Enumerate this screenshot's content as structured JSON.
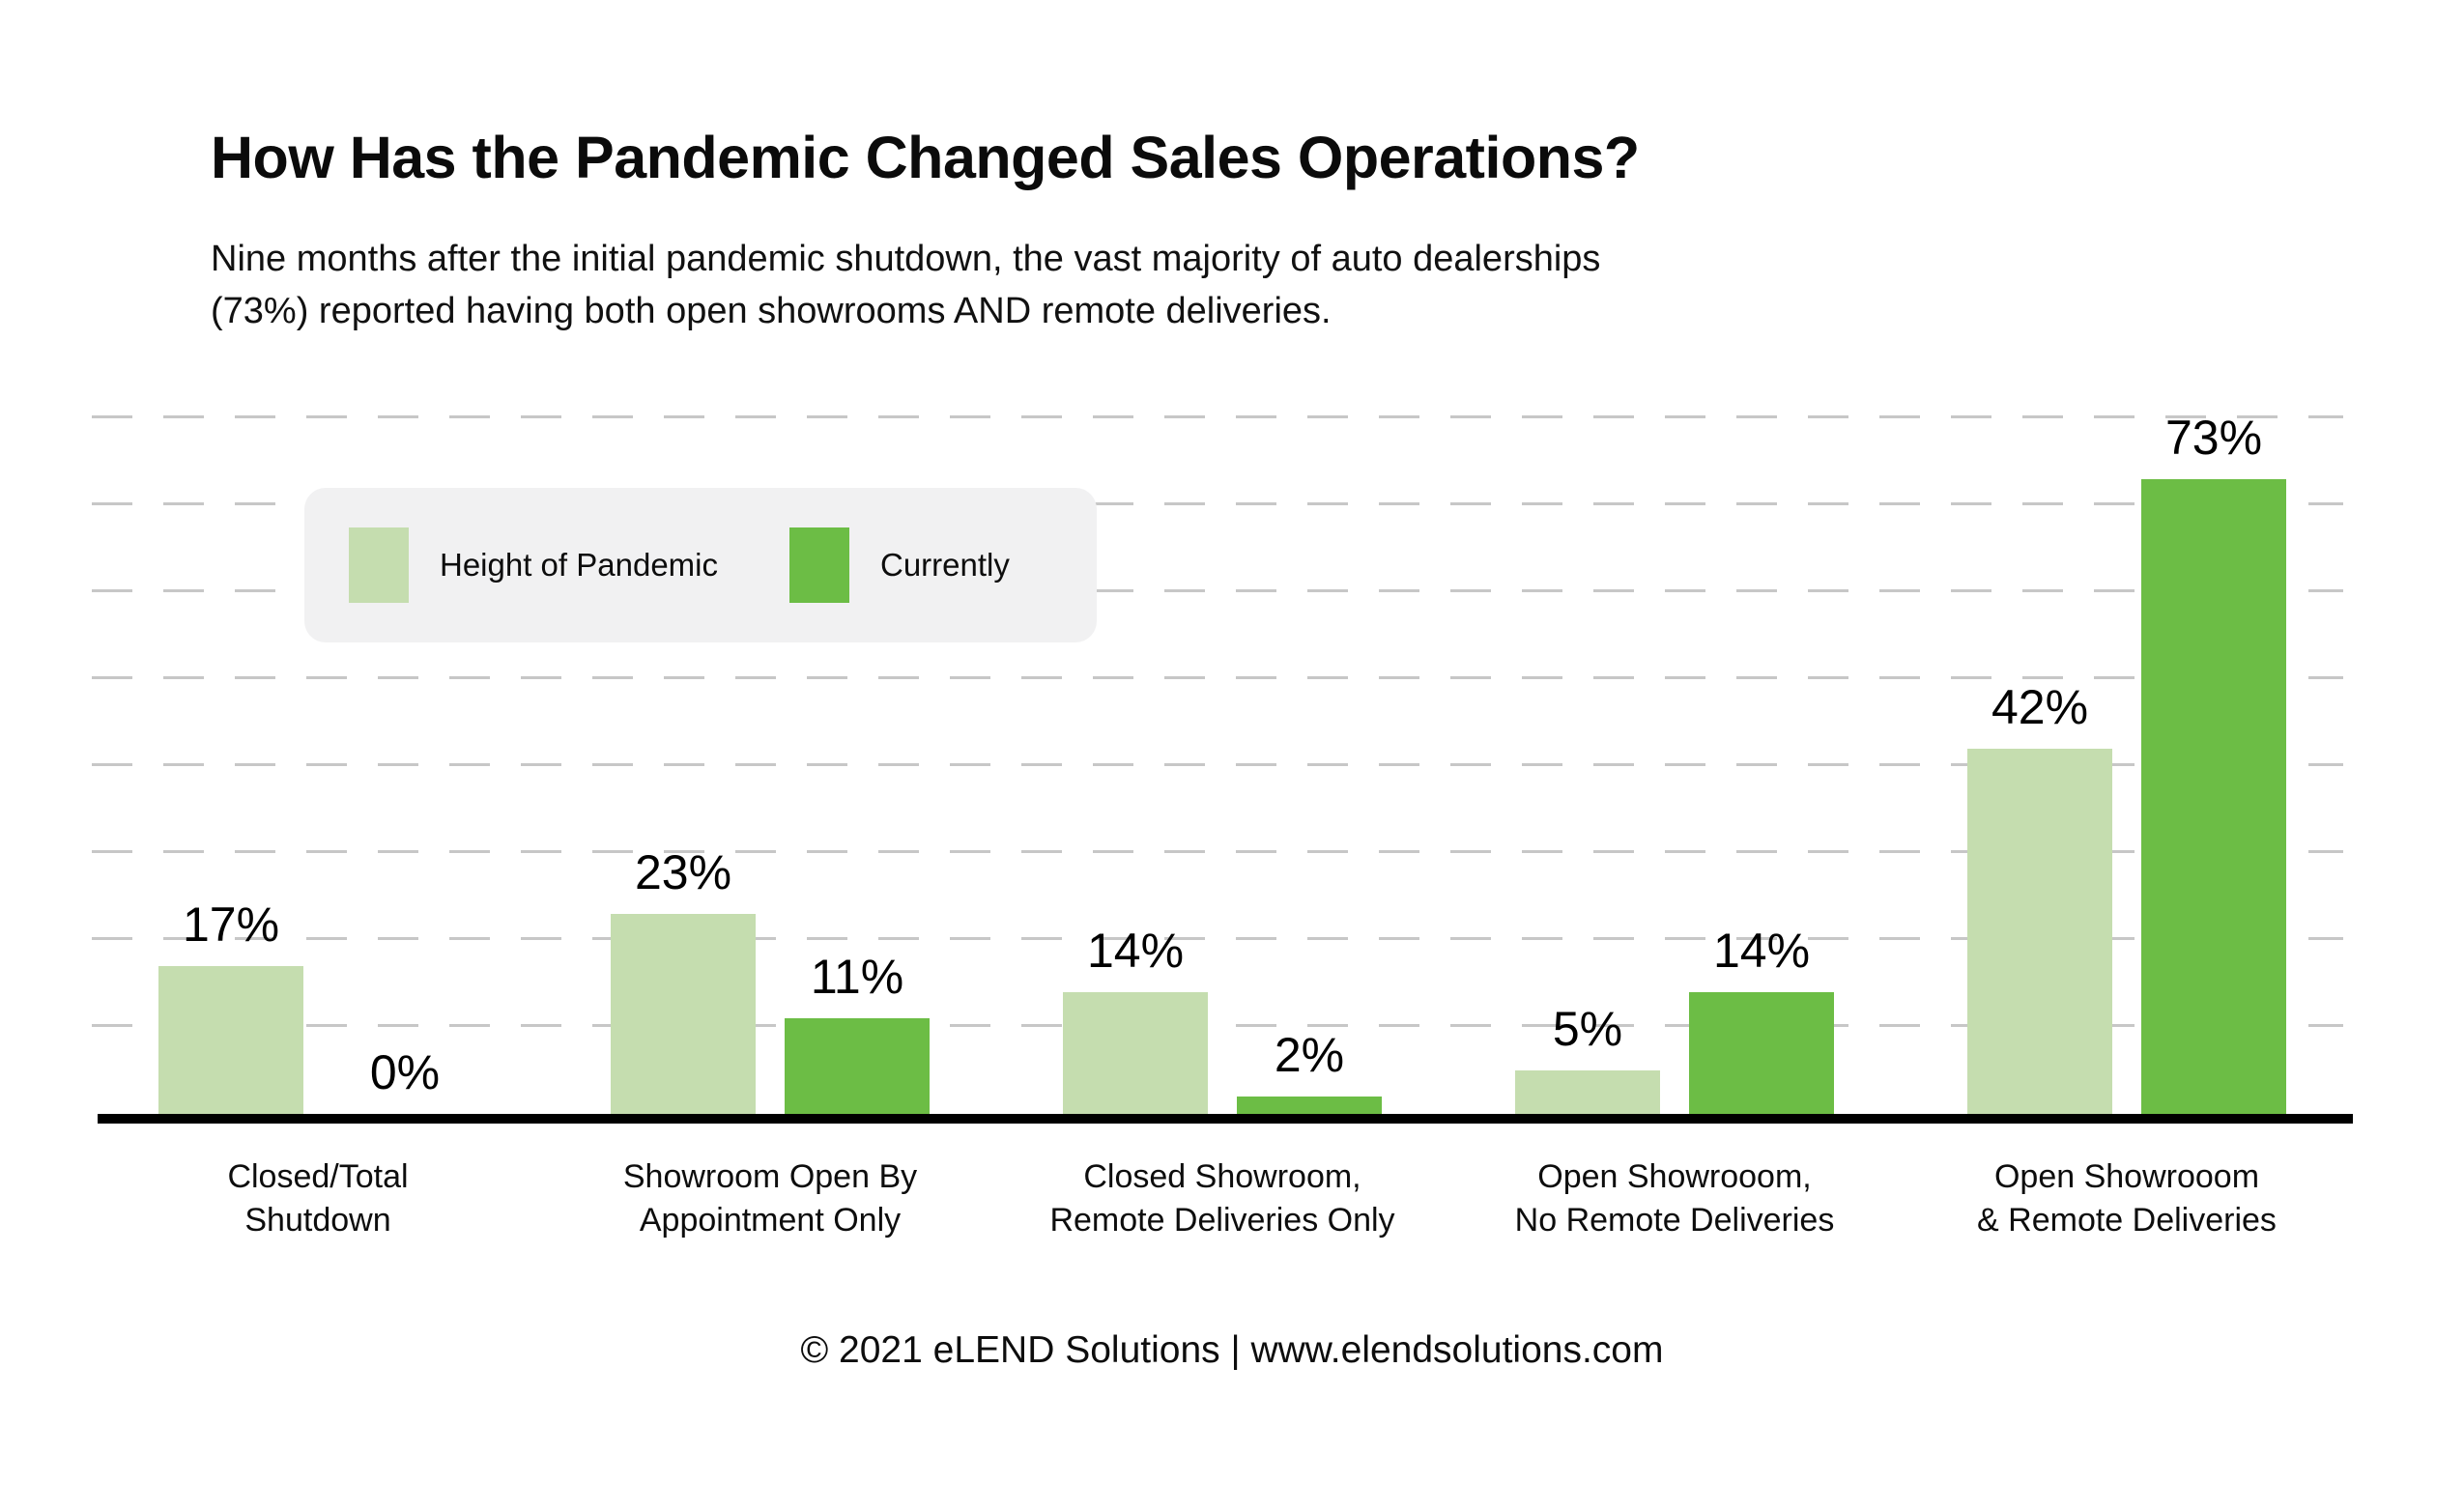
{
  "header": {
    "title": "How Has the Pandemic Changed Sales Operations?",
    "subtitle": "Nine months after the initial pandemic shutdown, the vast majority of auto dealerships (73%) reported having both open showrooms AND remote deliveries."
  },
  "legend": {
    "items": [
      {
        "label": "Height of Pandemic",
        "color": "#c5ddaf"
      },
      {
        "label": "Currently",
        "color": "#6cbd45"
      }
    ]
  },
  "chart_data": {
    "type": "bar",
    "title": "How Has the Pandemic Changed Sales Operations?",
    "subtitle": "Nine months after the initial pandemic shutdown, the vast majority of auto dealerships (73%) reported having both open showrooms AND remote deliveries.",
    "categories": [
      "Closed/Total Shutdown",
      "Showroom Open By Appointment Only",
      "Closed Showroom, Remote Deliveries Only",
      "Open Showrooom, No Remote Deliveries",
      "Open Showrooom & Remote Deliveries"
    ],
    "category_lines": [
      [
        "Closed/Total",
        "Shutdown"
      ],
      [
        "Showroom Open By",
        "Appointment Only"
      ],
      [
        "Closed Showroom,",
        "Remote Deliveries Only"
      ],
      [
        "Open Showrooom,",
        "No Remote Deliveries"
      ],
      [
        "Open Showrooom",
        "& Remote Deliveries"
      ]
    ],
    "series": [
      {
        "name": "Height of Pandemic",
        "color": "#c5ddaf",
        "values": [
          17,
          23,
          14,
          5,
          42
        ]
      },
      {
        "name": "Currently",
        "color": "#6cbd45",
        "values": [
          0,
          11,
          2,
          14,
          73
        ]
      }
    ],
    "value_suffix": "%",
    "ylim": [
      0,
      80
    ],
    "gridline_step": 10,
    "gridline_color": "#c7c7c7",
    "gridline_style": "dashed",
    "axis_color": "#000000",
    "legend_position": "top-left"
  },
  "footer": {
    "text": "© 2021 eLEND Solutions | www.elendsolutions.com"
  }
}
